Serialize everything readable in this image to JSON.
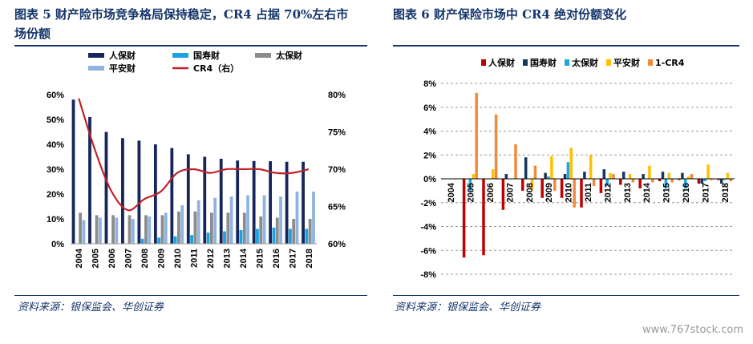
{
  "left": {
    "title": "图表 5 财产险市场竞争格局保持稳定，CR4 占据 70%左右市场份额",
    "source": "资料来源：银保监会、华创证券"
  },
  "right": {
    "title": "图表 6 财产保险市场中 CR4 绝对份额变化",
    "source": "资料来源：银保监会、华创证券"
  },
  "watermark": "www.767stock.com",
  "colors": {
    "renbao": "#16265c",
    "guoshou": "#1aa3e0",
    "taibao": "#8c8c8c",
    "pingan": "#8fb4e0",
    "cr4": "#c0222a",
    "renbao2": "#c00000",
    "guoshou2": "#16365c",
    "taibao2": "#19a8e0",
    "pingan2": "#ffc000",
    "onecr4": "#f08a3c"
  },
  "chart_data": [
    {
      "type": "bar",
      "categories": [
        "2004",
        "2005",
        "2006",
        "2007",
        "2008",
        "2009",
        "2010",
        "2011",
        "2012",
        "2013",
        "2014",
        "2015",
        "2016",
        "2017",
        "2018"
      ],
      "series": [
        {
          "name": "人保财",
          "values": [
            58,
            51,
            45,
            42.5,
            41.5,
            40,
            38.5,
            36,
            35,
            34.2,
            33.5,
            33.3,
            33.2,
            33,
            33
          ]
        },
        {
          "name": "国寿财",
          "values": [
            0,
            0,
            0,
            0,
            2,
            2.5,
            3,
            3.5,
            4.5,
            5,
            5.5,
            6,
            6.5,
            6,
            6
          ]
        },
        {
          "name": "太保财",
          "values": [
            12.5,
            11.5,
            11.5,
            11.5,
            11.5,
            11.5,
            13,
            13,
            12.5,
            12.5,
            12.5,
            11,
            10.5,
            10,
            10
          ]
        },
        {
          "name": "平安财",
          "values": [
            9.5,
            10.5,
            10.5,
            10,
            11,
            12.5,
            15.5,
            17.5,
            18.5,
            19,
            19.5,
            19.5,
            19,
            21,
            21
          ]
        },
        {
          "name": "CR4（右）",
          "axis": "right",
          "values": [
            79.5,
            72.5,
            67,
            64.5,
            66,
            67,
            69.5,
            70,
            69.5,
            70,
            70,
            70,
            69.5,
            69.5,
            70
          ]
        }
      ],
      "ylim": [
        0,
        60
      ],
      "yticks": [
        "0%",
        "10%",
        "20%",
        "30%",
        "40%",
        "50%",
        "60%"
      ],
      "y2lim": [
        60,
        80
      ],
      "y2ticks": [
        "60%",
        "65%",
        "70%",
        "75%",
        "80%"
      ],
      "legend": "top"
    },
    {
      "type": "bar",
      "categories": [
        "2004",
        "2005",
        "2006",
        "2007",
        "2008",
        "2009",
        "2010",
        "2011",
        "2012",
        "2013",
        "2014",
        "2015",
        "2016",
        "2017",
        "2018"
      ],
      "series": [
        {
          "name": "人保财",
          "values": [
            0,
            -6.6,
            -6.4,
            -2.6,
            -1,
            -1.6,
            -1.6,
            -2.4,
            -1.2,
            -0.5,
            -0.8,
            -0.2,
            -0.1,
            -0.4,
            -0.1
          ]
        },
        {
          "name": "国寿财",
          "values": [
            0,
            0,
            0,
            0.4,
            1.8,
            0.5,
            0.4,
            0.6,
            0.8,
            0.6,
            0.4,
            0.6,
            0.5,
            -0.4,
            -0.4
          ]
        },
        {
          "name": "太保财",
          "values": [
            0,
            -1,
            0,
            0,
            0,
            0.2,
            1.4,
            0,
            -0.6,
            0,
            0,
            -0.8,
            -0.8,
            -0.2,
            -0.1
          ]
        },
        {
          "name": "平安财",
          "values": [
            0,
            0.4,
            0.8,
            0,
            -0.9,
            1.9,
            2.6,
            2,
            0.5,
            0.4,
            1.1,
            0.5,
            0.2,
            1.2,
            0.5
          ]
        },
        {
          "name": "1-CR4",
          "values": [
            0,
            7.2,
            5.4,
            2.9,
            1.1,
            -1,
            -2.4,
            -0.6,
            0.4,
            -0.3,
            -0.3,
            -0.3,
            0.4,
            -0.1,
            -0.2
          ]
        }
      ],
      "ylim": [
        -8,
        8
      ],
      "yticks": [
        "-8%",
        "-6%",
        "-4%",
        "-2%",
        "0%",
        "2%",
        "4%",
        "6%",
        "8%"
      ],
      "grid": true,
      "legend": "top"
    }
  ]
}
